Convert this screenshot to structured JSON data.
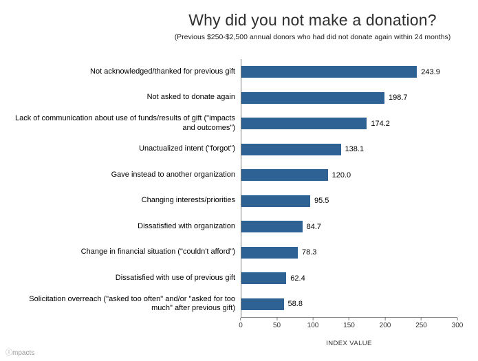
{
  "logo": "ⓘmpacts",
  "chart_data": {
    "type": "bar",
    "orientation": "horizontal",
    "title": "Why did you not make a donation?",
    "subtitle": "(Previous $250-$2,500 annual donors who had did not donate again within 24 months)",
    "categories": [
      "Not acknowledged/thanked for previous gift",
      "Not asked to donate again",
      "Lack of communication about use of funds/results of gift (\"impacts and outcomes\")",
      "Unactualized intent (\"forgot\")",
      "Gave instead to another organization",
      "Changing interests/priorities",
      "Dissatisfied with organization",
      "Change in financial situation (\"couldn't afford\")",
      "Dissatisfied with use of previous gift",
      "Solicitation overreach (\"asked too often\" and/or \"asked for too much\" after previous gift)"
    ],
    "values": [
      243.9,
      198.7,
      174.2,
      138.1,
      120.0,
      95.5,
      84.7,
      78.3,
      62.4,
      58.8
    ],
    "value_labels": [
      "243.9",
      "198.7",
      "174.2",
      "138.1",
      "120.0",
      "95.5",
      "84.7",
      "78.3",
      "62.4",
      "58.8"
    ],
    "xlabel": "INDEX VALUE",
    "ylabel": "",
    "xlim": [
      0,
      300
    ],
    "xticks": [
      0,
      50,
      100,
      150,
      200,
      250,
      300
    ],
    "grid": false,
    "legend": "none",
    "bar_color": "#2E6294"
  }
}
